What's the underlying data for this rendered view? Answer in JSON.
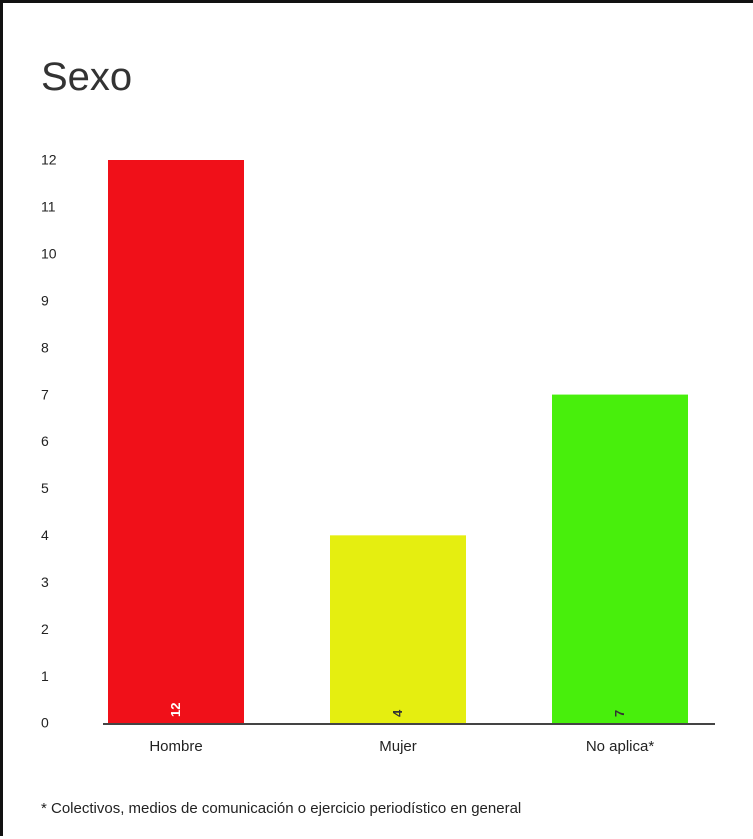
{
  "chart_data": {
    "type": "bar",
    "title": "Sexo",
    "categories": [
      "Hombre",
      "Mujer",
      "No aplica*"
    ],
    "values": [
      12,
      4,
      7
    ],
    "data_labels": [
      "12",
      "4",
      "7"
    ],
    "ylim": [
      0,
      12
    ],
    "yticks": [
      0,
      1,
      2,
      3,
      4,
      5,
      6,
      7,
      8,
      9,
      10,
      11,
      12
    ],
    "grid": false,
    "legend": "none",
    "colors": [
      "#f01019",
      "#e5ee10",
      "#48ef0c"
    ],
    "data_label_colors": [
      "#ffffff",
      "#333333",
      "#333333"
    ],
    "footnote": "* Colectivos, medios de comunicación o ejercicio periodístico en general"
  }
}
